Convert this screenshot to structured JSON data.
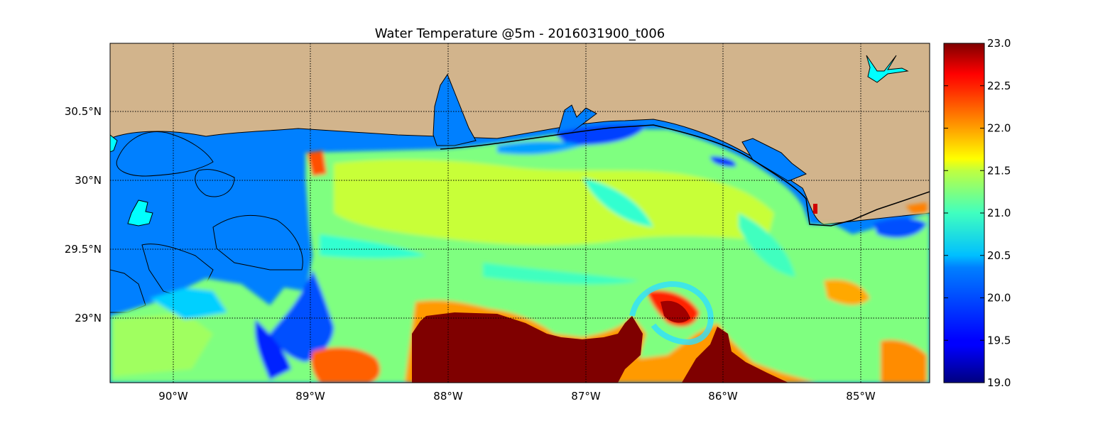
{
  "title": "Water Temperature @5m - 2016031900_t006",
  "map": {
    "lon_range": [
      -90.5,
      -84.5
    ],
    "lat_range": [
      28.55,
      31.0
    ],
    "lon_ticks": [
      -90,
      -89,
      -88,
      -87,
      -86,
      -85
    ],
    "lat_ticks": [
      29.0,
      29.5,
      30.0,
      30.5
    ],
    "lon_tick_labels": [
      "90°W",
      "89°W",
      "88°W",
      "87°W",
      "86°W",
      "85°W"
    ],
    "lat_tick_labels": [
      "29°N",
      "29.5°N",
      "30°N",
      "30.5°N"
    ],
    "gridlines": "dotted",
    "land_color": "#d2b48c",
    "nodata_water_color": "#0080ff",
    "lake_color": "#00ffff"
  },
  "colorbar": {
    "min": 19.0,
    "max": 23.0,
    "tick_values": [
      19.0,
      19.5,
      20.0,
      20.5,
      21.0,
      21.5,
      22.0,
      22.5,
      23.0
    ],
    "tick_labels": [
      "19.0",
      "19.5",
      "20.0",
      "20.5",
      "21.0",
      "21.5",
      "22.0",
      "22.5",
      "23.0"
    ],
    "colormap": "jet"
  }
}
